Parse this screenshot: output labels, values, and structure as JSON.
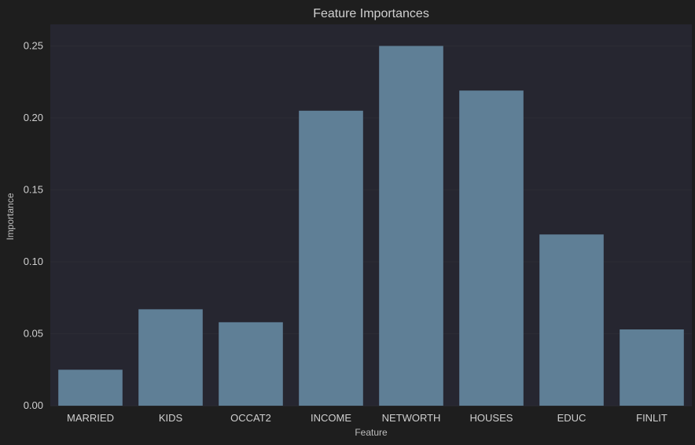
{
  "chart_data": {
    "type": "bar",
    "title": "Feature Importances",
    "xlabel": "Feature",
    "ylabel": "Importance",
    "categories": [
      "MARRIED",
      "KIDS",
      "OCCAT2",
      "INCOME",
      "NETWORTH",
      "HOUSES",
      "EDUC",
      "FINLIT"
    ],
    "values": [
      0.025,
      0.067,
      0.058,
      0.205,
      0.25,
      0.219,
      0.119,
      0.053
    ],
    "ylim": [
      0,
      0.265
    ],
    "yticks": [
      0.0,
      0.05,
      0.1,
      0.15,
      0.2,
      0.25
    ],
    "ytick_labels": [
      "0.00",
      "0.05",
      "0.10",
      "0.15",
      "0.20",
      "0.25"
    ],
    "grid": true,
    "colors": {
      "bar": "#5f7f96",
      "plot_bg": "#262630",
      "page_bg": "#1e1e1e",
      "grid": "#2c2c34"
    }
  }
}
